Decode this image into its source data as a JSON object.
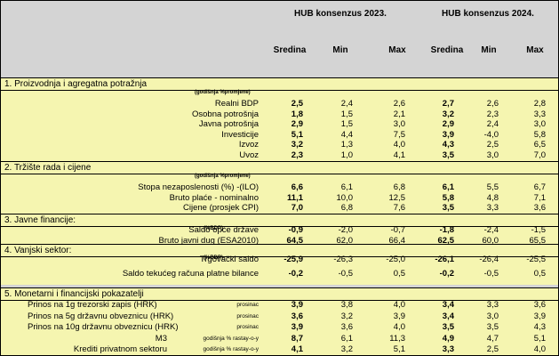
{
  "header": {
    "group_2023": "HUB konsenzus 2023.",
    "group_2024": "HUB konsenzus 2024.",
    "columns": [
      "Sredina",
      "Min",
      "Max",
      "Sredina",
      "Min",
      "Max"
    ]
  },
  "sections": [
    {
      "title": "1. Proizvodnja i agregatna potražnja",
      "unit": "(godišnja %promjene)",
      "rows": [
        {
          "label": "Realni BDP",
          "values": [
            "2,5",
            "2,4",
            "2,6",
            "2,7",
            "2,6",
            "2,8"
          ]
        },
        {
          "label": "Osobna potrošnja",
          "values": [
            "1,8",
            "1,5",
            "2,1",
            "3,2",
            "2,3",
            "3,3"
          ]
        },
        {
          "label": "Javna potrošnja",
          "values": [
            "2,9",
            "1,5",
            "3,0",
            "2,9",
            "2,4",
            "3,0"
          ]
        },
        {
          "label": "Investicije",
          "values": [
            "5,1",
            "4,4",
            "7,5",
            "3,9",
            "-4,0",
            "5,8"
          ]
        },
        {
          "label": "Izvoz",
          "values": [
            "3,2",
            "1,3",
            "4,0",
            "4,3",
            "2,5",
            "6,5"
          ]
        },
        {
          "label": "Uvoz",
          "values": [
            "2,3",
            "1,0",
            "4,1",
            "3,5",
            "3,0",
            "7,0"
          ]
        }
      ]
    },
    {
      "title": "2. Tržište rada i cijene",
      "unit": "(godišnja %promjene)",
      "rows": [
        {
          "label": "Stopa nezaposlenosti (%) -(ILO)",
          "values": [
            "6,6",
            "6,1",
            "6,8",
            "6,1",
            "5,5",
            "6,7"
          ]
        },
        {
          "label": "Bruto plaće - nominalno",
          "values": [
            "11,1",
            "10,0",
            "12,5",
            "5,8",
            "4,8",
            "7,1"
          ]
        },
        {
          "label": "Cijene (prosjek CPI)",
          "values": [
            "7,0",
            "6,8",
            "7,6",
            "3,5",
            "3,3",
            "3,6"
          ]
        }
      ]
    },
    {
      "title": "3. Javne financije:",
      "unit": "(%BDP)",
      "rows": [
        {
          "label": "Saldo opće države",
          "values": [
            "-0,9",
            "-2,0",
            "-0,7",
            "-1,8",
            "-2,4",
            "-1,5"
          ]
        },
        {
          "label": "Bruto javni dug (ESA2010)",
          "values": [
            "64,5",
            "62,0",
            "66,4",
            "62,5",
            "60,0",
            "65,5"
          ]
        }
      ]
    },
    {
      "title": "4. Vanjski sektor:",
      "unit": "(%BDP)",
      "rows": [
        {
          "label": "Trgovački saldo",
          "values": [
            "-25,9",
            "-26,3",
            "-25,0",
            "-26,1",
            "-26,4",
            "-25,5"
          ]
        },
        {
          "label": "Saldo tekućeg računa platne bilance",
          "values": [
            "-0,2",
            "-0,5",
            "0,5",
            "-0,2",
            "-0,5",
            "0,5"
          ]
        }
      ]
    },
    {
      "title": "5. Monetarni i financijski pokazatelji",
      "rows": [
        {
          "label": "Prinos na 1g trezorski zapis (HRK)",
          "note": "prosinac",
          "values": [
            "3,9",
            "3,8",
            "4,0",
            "3,4",
            "3,3",
            "3,6"
          ]
        },
        {
          "label": "Prinos na 5g državnu obveznicu (HRK)",
          "note": "prosinac",
          "values": [
            "3,6",
            "3,2",
            "3,9",
            "3,4",
            "3,0",
            "3,9"
          ]
        },
        {
          "label": "Prinos na 10g državnu obveznicu (HRK)",
          "note": "prosinac",
          "values": [
            "3,9",
            "3,6",
            "4,0",
            "3,5",
            "3,5",
            "4,3"
          ]
        },
        {
          "label": "M3",
          "note": "godišnja % rastay-o-y",
          "values": [
            "8,7",
            "6,1",
            "11,3",
            "4,9",
            "4,7",
            "5,1"
          ]
        },
        {
          "label": "Krediti privatnom sektoru",
          "note": "godišnja % rastay-o-y",
          "values": [
            "4,1",
            "3,2",
            "5,1",
            "3,3",
            "2,5",
            "4,0"
          ]
        }
      ]
    }
  ]
}
